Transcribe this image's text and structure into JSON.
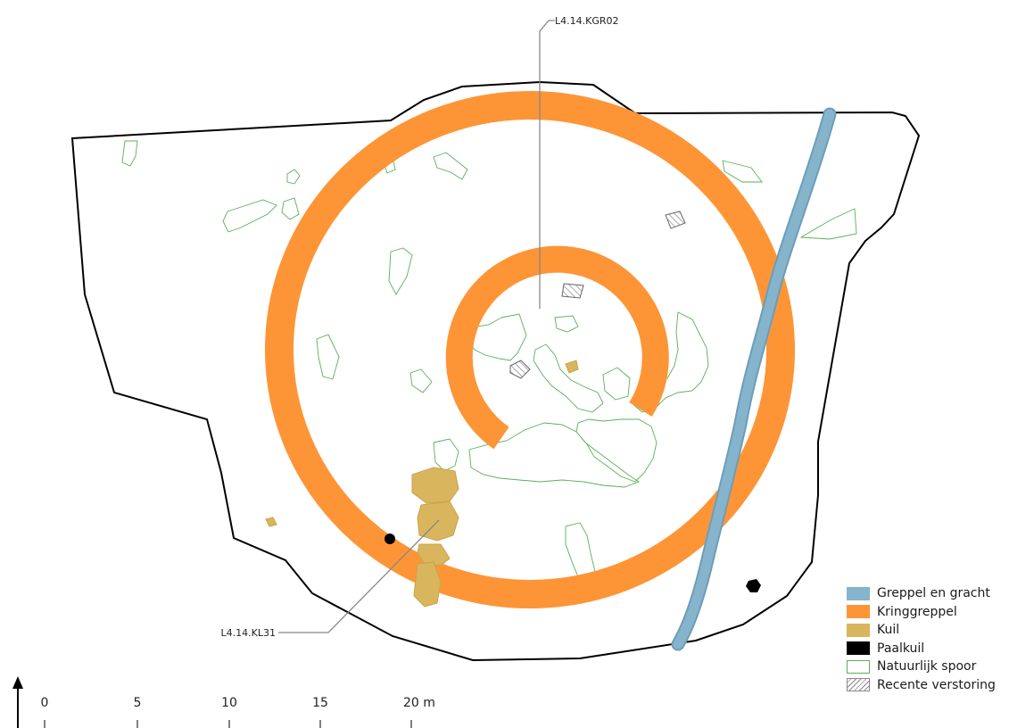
{
  "labels": {
    "ring_feature": "L4.14.KGR02",
    "pit_feature": "L4.14.KL31"
  },
  "scale_bar": {
    "ticks": [
      "0",
      "5",
      "10",
      "15",
      "20 m"
    ]
  },
  "north_arrow": true,
  "legend": {
    "items": [
      {
        "label": "Greppel en gracht",
        "color": "#86b4cc",
        "style": "fill"
      },
      {
        "label": "Kringgreppel",
        "color": "#fd9537",
        "style": "fill"
      },
      {
        "label": "Kuil",
        "color": "#d9b55d",
        "style": "fill"
      },
      {
        "label": "Paalkuil",
        "color": "#000000",
        "style": "fill"
      },
      {
        "label": "Natuurlijk spoor",
        "color": "#58b058",
        "style": "outline"
      },
      {
        "label": "Recente verstoring",
        "color": "#8a8a8a",
        "style": "hatch"
      }
    ]
  }
}
